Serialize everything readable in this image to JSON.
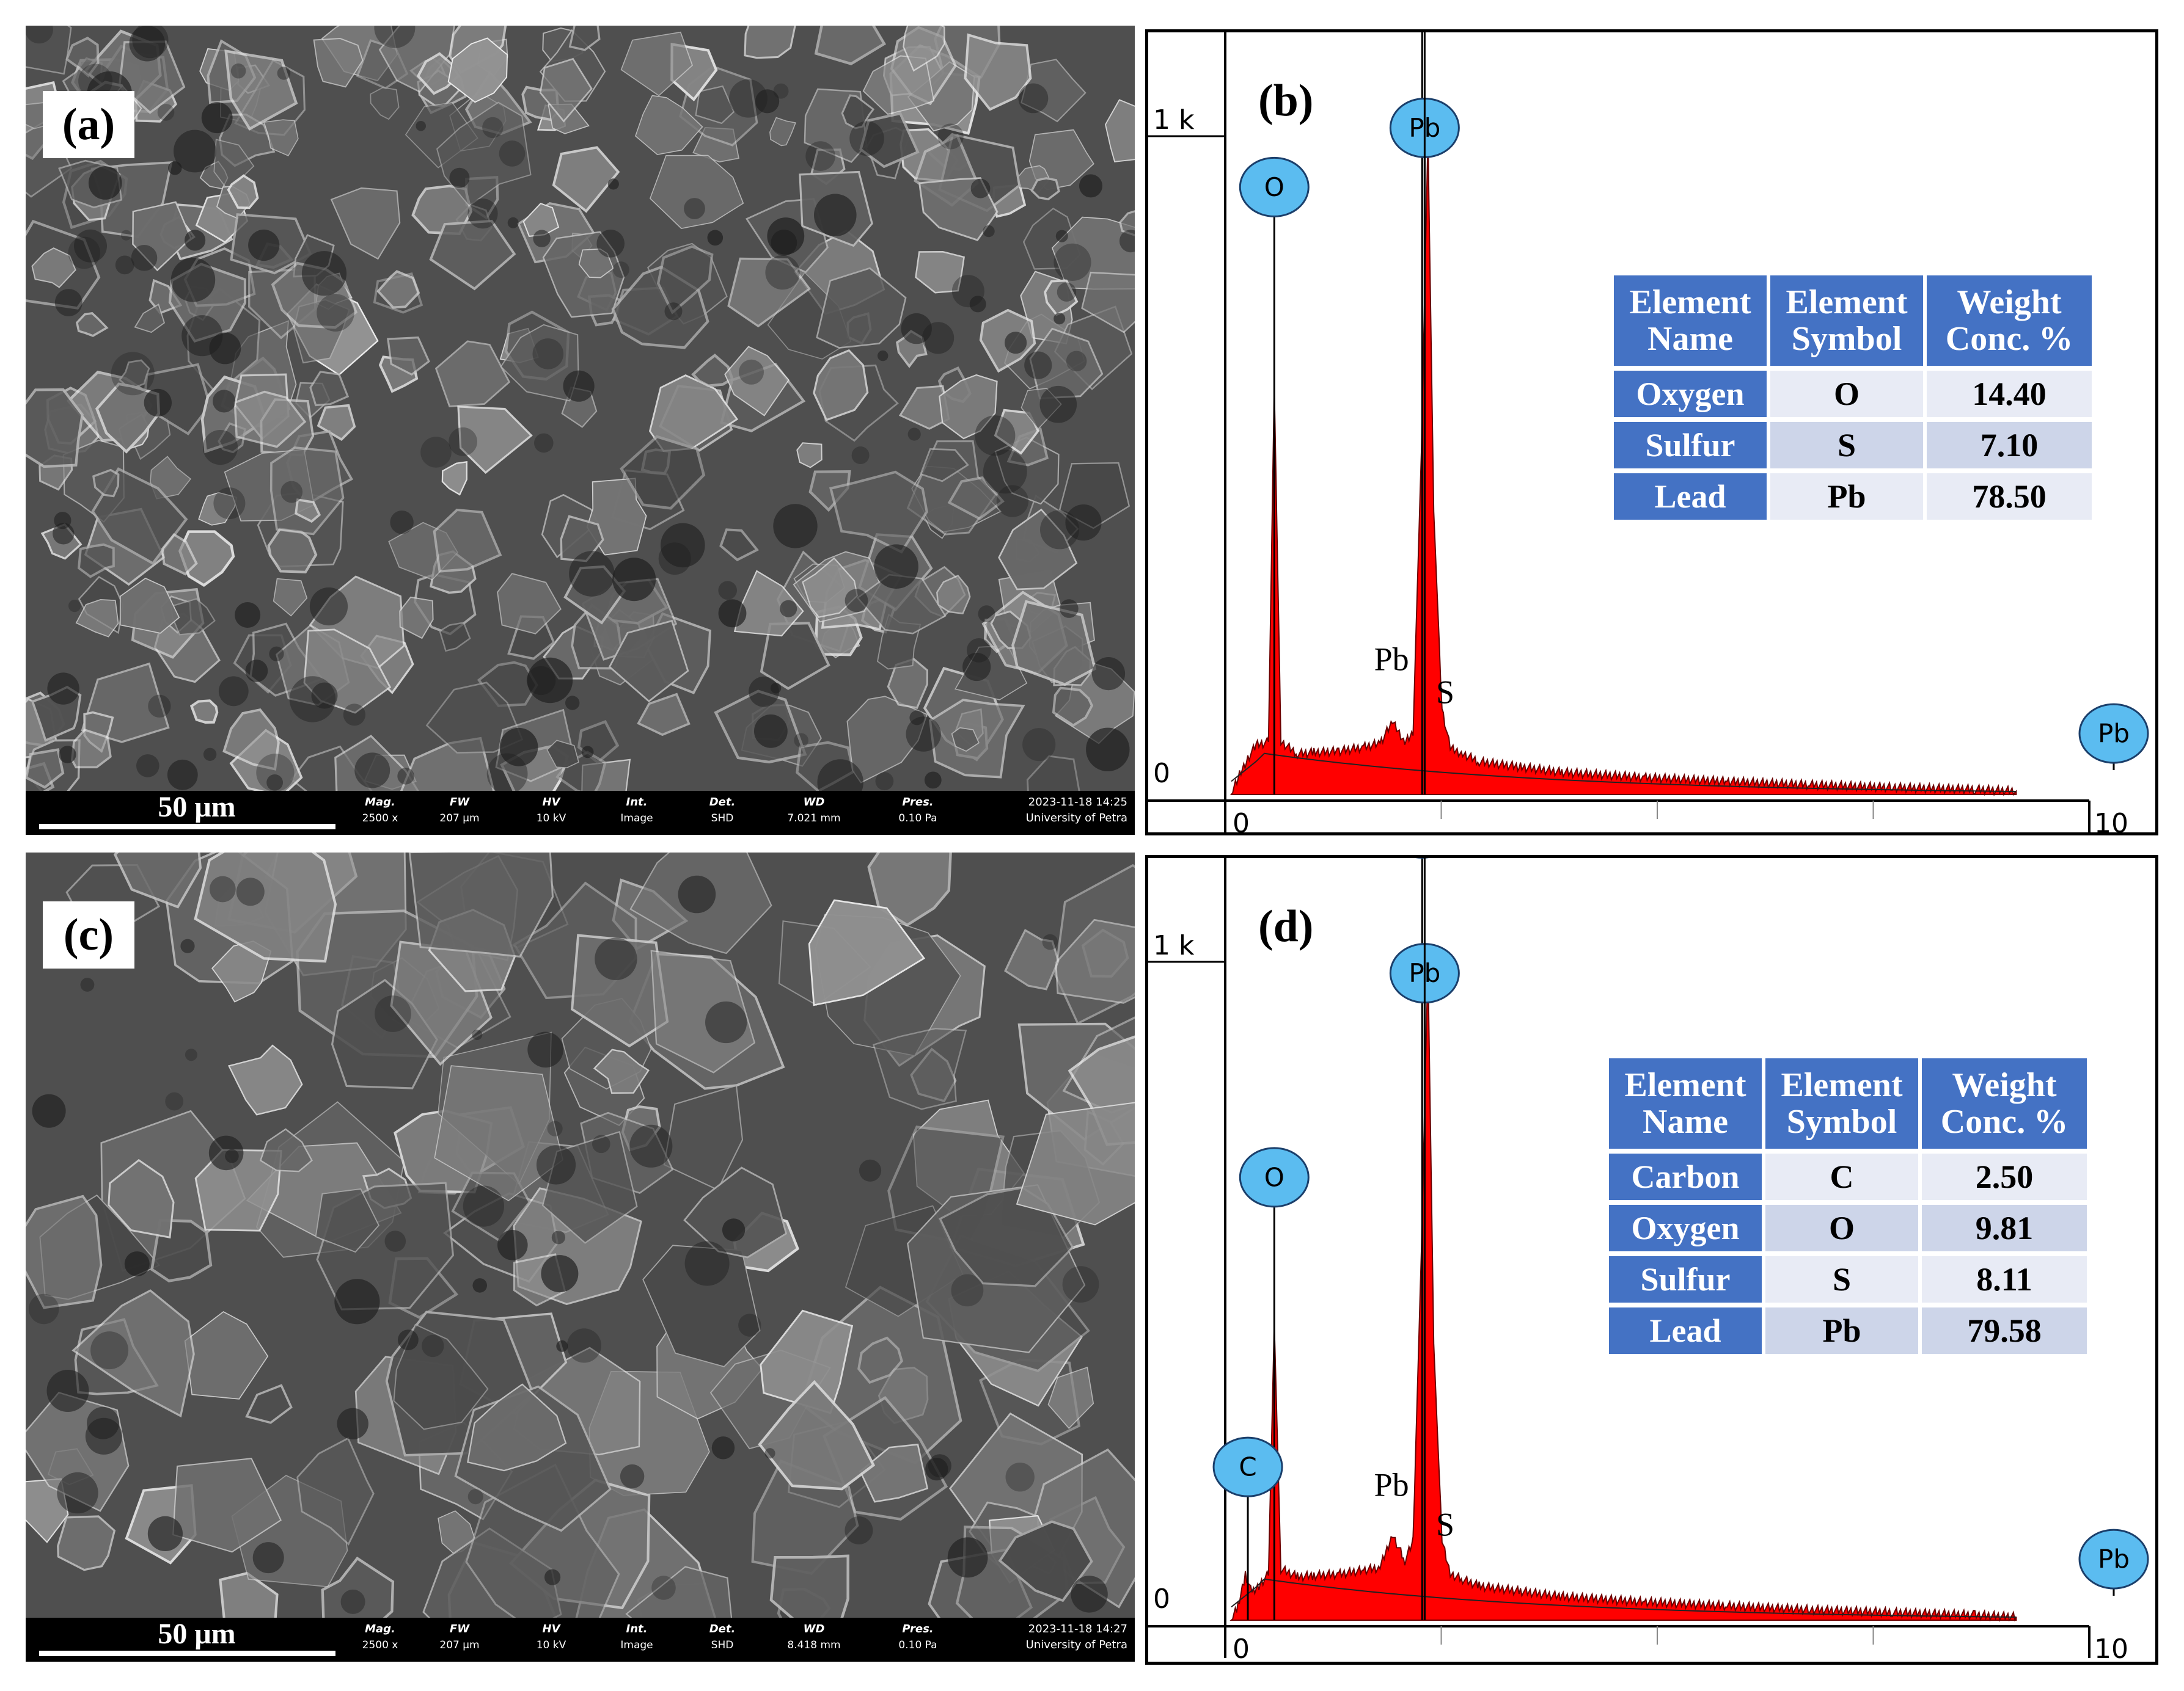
{
  "panels": {
    "a": {
      "label": "(a)",
      "scalebar": "50 μm",
      "meta": [
        {
          "k": "Mag.",
          "v": "2500 x"
        },
        {
          "k": "FW",
          "v": "207 μm"
        },
        {
          "k": "HV",
          "v": "10 kV"
        },
        {
          "k": "Int.",
          "v": "Image"
        },
        {
          "k": "Det.",
          "v": "SHD"
        },
        {
          "k": "WD",
          "v": "7.021 mm"
        },
        {
          "k": "Pres.",
          "v": "0.10 Pa"
        }
      ],
      "timestamp": "2023-11-18 14:25",
      "institution": "University of Petra"
    },
    "c": {
      "label": "(c)",
      "scalebar": "50 μm",
      "meta": [
        {
          "k": "Mag.",
          "v": "2500 x"
        },
        {
          "k": "FW",
          "v": "207 μm"
        },
        {
          "k": "HV",
          "v": "10 kV"
        },
        {
          "k": "Int.",
          "v": "Image"
        },
        {
          "k": "Det.",
          "v": "SHD"
        },
        {
          "k": "WD",
          "v": "8.418 mm"
        },
        {
          "k": "Pres.",
          "v": "0.10 Pa"
        }
      ],
      "timestamp": "2023-11-18 14:27",
      "institution": "University of Petra"
    },
    "b": {
      "label": "(b)",
      "table": {
        "headers": [
          "Element Name",
          "Element Symbol",
          "Weight Conc. %"
        ],
        "rows": [
          [
            "Oxygen",
            "O",
            "14.40"
          ],
          [
            "Sulfur",
            "S",
            "7.10"
          ],
          [
            "Lead",
            "Pb",
            "78.50"
          ]
        ]
      }
    },
    "d": {
      "label": "(d)",
      "table": {
        "headers": [
          "Element Name",
          "Element Symbol",
          "Weight Conc. %"
        ],
        "rows": [
          [
            "Carbon",
            "C",
            "2.50"
          ],
          [
            "Oxygen",
            "O",
            "9.81"
          ],
          [
            "Sulfur",
            "S",
            "8.11"
          ],
          [
            "Lead",
            "Pb",
            "79.58"
          ]
        ]
      }
    }
  },
  "colors": {
    "spectrum_fill": "#ff0000",
    "bubble": "#5bbcf0",
    "table_header": "#4472c4"
  },
  "chart_data": [
    {
      "type": "area",
      "panel": "b",
      "xlim": [
        0,
        10
      ],
      "ylim": [
        0,
        1000
      ],
      "x_ticks": [
        "0",
        "10"
      ],
      "y_ticks": [
        "0",
        "1 k"
      ],
      "spectrum": {
        "x": [
          0.0,
          0.1,
          0.2,
          0.3,
          0.45,
          0.52,
          0.6,
          0.8,
          1.0,
          1.3,
          1.6,
          1.8,
          1.95,
          2.1,
          2.2,
          2.3,
          2.38,
          2.45,
          2.55,
          2.65,
          2.8,
          3.0,
          3.5,
          4.0,
          5.0,
          6.0,
          7.0,
          8.0,
          9.0,
          9.5
        ],
        "y": [
          0,
          30,
          55,
          75,
          80,
          620,
          80,
          62,
          64,
          66,
          72,
          78,
          110,
          80,
          96,
          520,
          1000,
          430,
          130,
          70,
          62,
          50,
          42,
          34,
          26,
          20,
          15,
          11,
          8,
          5
        ]
      },
      "element_markers": [
        {
          "label": "O",
          "x": 0.52,
          "level": 0.88
        },
        {
          "label": "S",
          "x": 2.31,
          "level": 1.18
        },
        {
          "label": "Pb",
          "x": 2.34,
          "level": 0.97
        },
        {
          "label": "Pb",
          "x": 2.34,
          "level": 1.65
        },
        {
          "label": "Pb",
          "x": 10.5,
          "level": 0.05
        }
      ],
      "peak_labels": [
        {
          "label": "Pb",
          "x": 1.95,
          "y": 170
        },
        {
          "label": "S",
          "x": 2.7,
          "y": 120
        }
      ]
    },
    {
      "type": "area",
      "panel": "d",
      "xlim": [
        0,
        10
      ],
      "ylim": [
        0,
        1000
      ],
      "x_ticks": [
        "0",
        "10"
      ],
      "y_ticks": [
        "0",
        "1 k"
      ],
      "spectrum": {
        "x": [
          0.0,
          0.08,
          0.17,
          0.25,
          0.35,
          0.45,
          0.52,
          0.6,
          0.8,
          1.0,
          1.3,
          1.6,
          1.8,
          1.95,
          2.1,
          2.2,
          2.3,
          2.38,
          2.45,
          2.55,
          2.65,
          2.8,
          3.0,
          3.5,
          4.0,
          5.0,
          6.0,
          7.0,
          8.0,
          9.0,
          9.5
        ],
        "y": [
          0,
          20,
          70,
          40,
          55,
          70,
          450,
          78,
          66,
          68,
          70,
          76,
          80,
          130,
          90,
          120,
          560,
          1000,
          420,
          120,
          70,
          62,
          52,
          44,
          36,
          28,
          22,
          16,
          12,
          8,
          5
        ]
      },
      "element_markers": [
        {
          "label": "O",
          "x": 0.52,
          "level": 0.63
        },
        {
          "label": "C",
          "x": 0.2,
          "level": 0.19
        },
        {
          "label": "S",
          "x": 2.31,
          "level": 1.16
        },
        {
          "label": "Pb",
          "x": 2.34,
          "level": 0.94
        },
        {
          "label": "Pb",
          "x": 2.34,
          "level": 1.63
        },
        {
          "label": "Pb",
          "x": 10.5,
          "level": 0.05
        }
      ],
      "peak_labels": [
        {
          "label": "Pb",
          "x": 1.95,
          "y": 170
        },
        {
          "label": "S",
          "x": 2.7,
          "y": 110
        }
      ]
    }
  ]
}
